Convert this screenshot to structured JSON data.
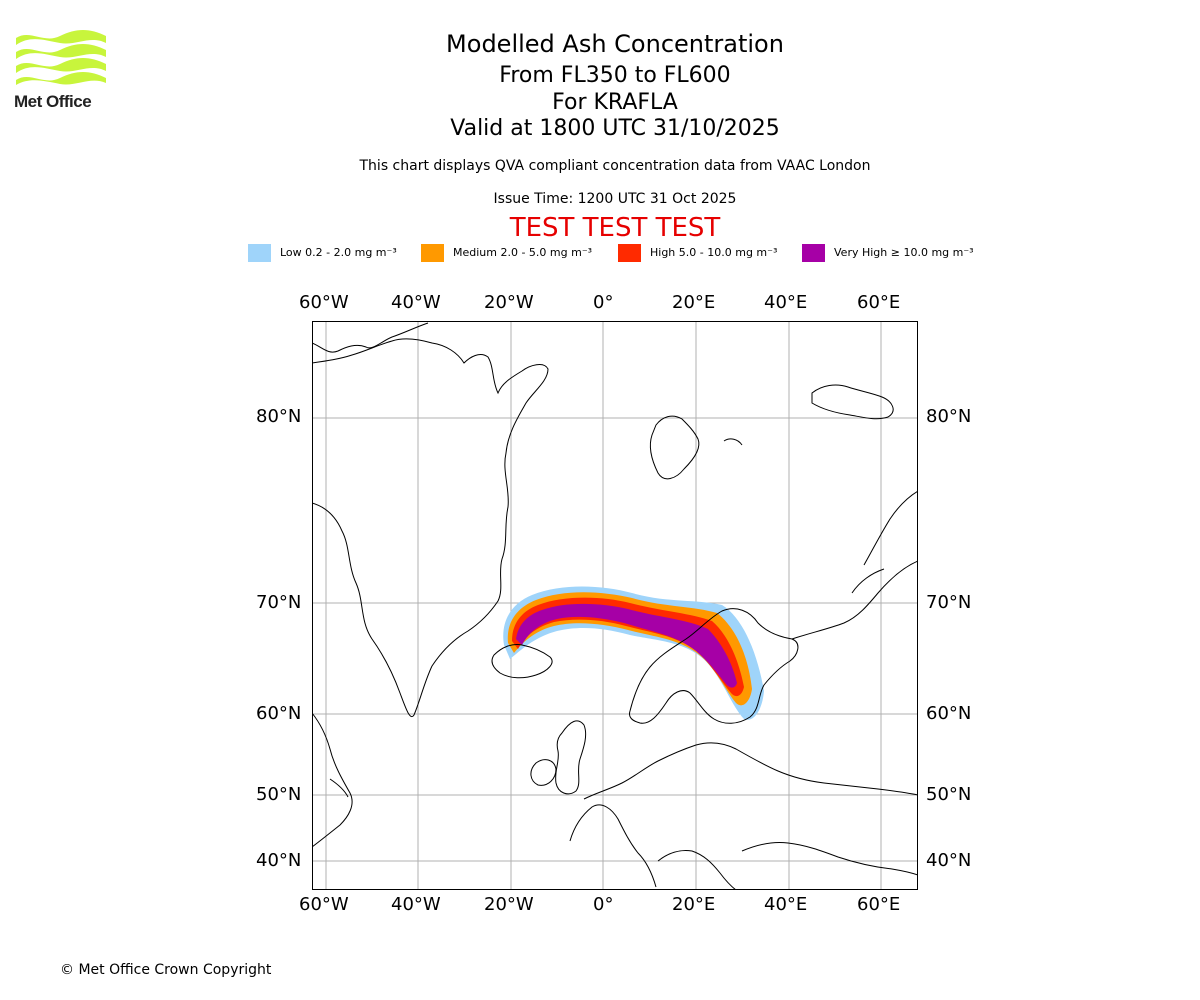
{
  "branding": {
    "logo_text": "Met Office",
    "logo_color": "#c8f53c"
  },
  "header": {
    "title": "Modelled Ash Concentration",
    "level_range": "From FL350 to FL600",
    "volcano": "For KRAFLA",
    "valid_time": "Valid at 1800 UTC 31/10/2025",
    "description": "This chart displays QVA compliant concentration data from VAAC London",
    "issue_time": "Issue Time: 1200 UTC 31 Oct 2025",
    "test_banner": "TEST TEST TEST"
  },
  "legend": [
    {
      "name": "Low",
      "label": "Low 0.2 - 2.0 mg m⁻³",
      "color": "#9fd4fa"
    },
    {
      "name": "Medium",
      "label": "Medium 2.0 - 5.0 mg m⁻³",
      "color": "#ff9900"
    },
    {
      "name": "High",
      "label": "High 5.0 - 10.0 mg m⁻³",
      "color": "#ff2a00"
    },
    {
      "name": "Very High",
      "label": "Very High ≥ 10.0 mg m⁻³",
      "color": "#a600a6"
    }
  ],
  "map": {
    "lon_labels": [
      "60°W",
      "40°W",
      "20°W",
      "0°",
      "20°E",
      "40°E",
      "60°E"
    ],
    "lat_labels": [
      "80°N",
      "70°N",
      "60°N",
      "50°N",
      "40°N"
    ],
    "ash_plume": {
      "source": "KRAFLA",
      "extent": "Iceland north of Norway to Finland and the Russian border"
    }
  },
  "footer": {
    "copyright": "© Met Office Crown Copyright"
  }
}
